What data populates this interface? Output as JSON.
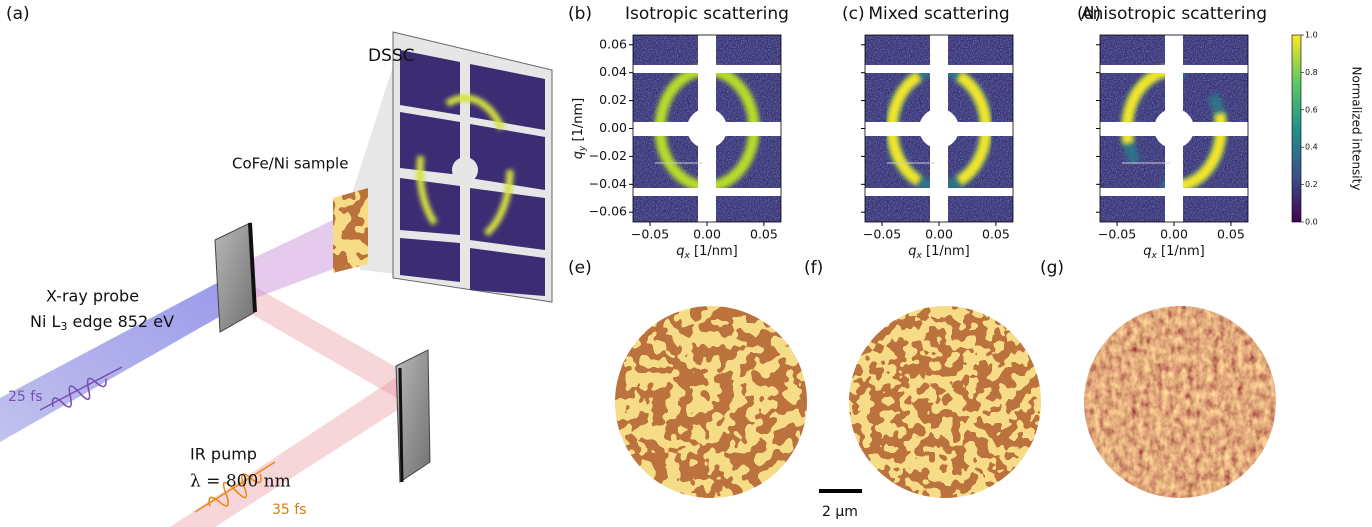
{
  "schematic": {
    "label": "(a)",
    "detector": "DSSC",
    "sample": "CoFe/Ni sample",
    "probe": {
      "title": "X-ray probe",
      "edge": {
        "pre": "Ni L",
        "sub": "3",
        "post": " edge 852 eV"
      },
      "duration": "25 fs"
    },
    "pump": {
      "title": "IR pump",
      "wavelength": "λ = 800 nm",
      "duration": "35 fs"
    }
  },
  "scattering": {
    "xlim": [
      -0.065,
      0.065
    ],
    "ylim": [
      -0.067,
      0.067
    ],
    "xticks": [
      {
        "value": -0.05,
        "label": "−0.05"
      },
      {
        "value": 0,
        "label": "0.00"
      },
      0.05
    ],
    "yticks": [
      0.06,
      0.04,
      0.02,
      {
        "value": 0,
        "label": "0.00"
      },
      {
        "value": -0.02,
        "label": "−0.02"
      },
      {
        "value": -0.04,
        "label": "−0.04"
      },
      {
        "value": -0.06,
        "label": "−0.06"
      }
    ],
    "x_label": {
      "symbol": "q",
      "subscript": "x",
      "unit": " [1/nm]"
    },
    "y_label": {
      "symbol": "q",
      "subscript": "y",
      "unit": " [1/nm]"
    },
    "panels": [
      {
        "label": "(b)",
        "title": "Isotropic scattering"
      },
      {
        "label": "(c)",
        "title": "Mixed scattering"
      },
      {
        "label": "(d)",
        "title": "Anisotropic scattering"
      }
    ],
    "colorbar": {
      "label": "Normalized intensity",
      "lim": [
        0,
        1
      ],
      "ticks": [
        {
          "value": 0,
          "label": "0.0"
        },
        0.2,
        0.4,
        0.6,
        0.8,
        {
          "value": 1,
          "label": "1.0"
        }
      ]
    }
  },
  "domains": {
    "panels": [
      {
        "label": "(e)"
      },
      {
        "label": "(f)"
      },
      {
        "label": "(g)"
      }
    ],
    "scale_bar": "2 µm"
  }
}
